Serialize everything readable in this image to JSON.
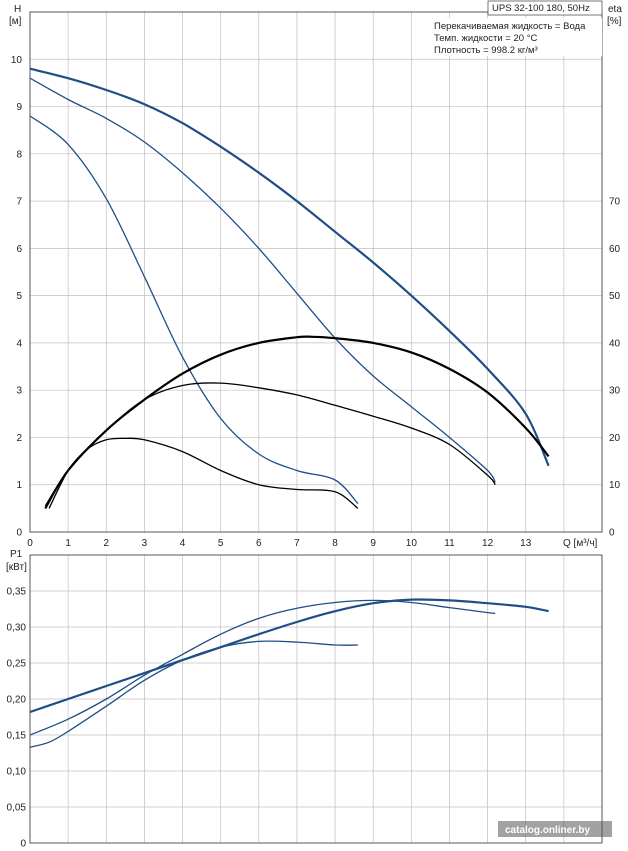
{
  "chart_data": [
    {
      "type": "line",
      "title": "UPS 32-100  180, 50Hz",
      "info_lines": [
        "Перекачиваемая жидкость = Вода",
        "Темп. жидкости = 20 °C",
        "Плотность = 998.2 кг/м³"
      ],
      "ylabel_left": "H",
      "ylabel_left_unit": "[м]",
      "ylabel_right": "eta",
      "ylabel_right_unit": "[%]",
      "xlabel": "Q [м³/ч]",
      "xlim": [
        0,
        15
      ],
      "xticks": [
        0,
        1,
        2,
        3,
        4,
        5,
        6,
        7,
        8,
        9,
        10,
        11,
        12,
        13
      ],
      "ylim_left": [
        0,
        11
      ],
      "yticks_left": [
        0,
        1,
        2,
        3,
        4,
        5,
        6,
        7,
        8,
        9,
        10
      ],
      "ylim_right": [
        0,
        110
      ],
      "yticks_right": [
        0,
        10,
        20,
        30,
        40,
        50,
        60,
        70
      ],
      "grid": true,
      "head_series": [
        {
          "points": [
            [
              0,
              9.8
            ],
            [
              1,
              9.6
            ],
            [
              2,
              9.35
            ],
            [
              3,
              9.05
            ],
            [
              4,
              8.65
            ],
            [
              5,
              8.15
            ],
            [
              6,
              7.6
            ],
            [
              7,
              7.0
            ],
            [
              8,
              6.35
            ],
            [
              9,
              5.7
            ],
            [
              10,
              5.0
            ],
            [
              11,
              4.25
            ],
            [
              12,
              3.45
            ],
            [
              13,
              2.5
            ],
            [
              13.6,
              1.4
            ]
          ]
        },
        {
          "points": [
            [
              0,
              9.6
            ],
            [
              1,
              9.15
            ],
            [
              2,
              8.75
            ],
            [
              3,
              8.25
            ],
            [
              4,
              7.6
            ],
            [
              5,
              6.85
            ],
            [
              6,
              6.0
            ],
            [
              7,
              5.05
            ],
            [
              8,
              4.1
            ],
            [
              9,
              3.3
            ],
            [
              10,
              2.65
            ],
            [
              11,
              2.0
            ],
            [
              12,
              1.3
            ],
            [
              12.2,
              1.05
            ]
          ]
        },
        {
          "points": [
            [
              0,
              8.8
            ],
            [
              1,
              8.2
            ],
            [
              2,
              7.05
            ],
            [
              3,
              5.4
            ],
            [
              4,
              3.7
            ],
            [
              5,
              2.4
            ],
            [
              6,
              1.65
            ],
            [
              7,
              1.3
            ],
            [
              8,
              1.1
            ],
            [
              8.6,
              0.6
            ]
          ]
        }
      ],
      "eta_series": [
        {
          "points": [
            [
              0.4,
              5
            ],
            [
              1,
              13
            ],
            [
              2,
              21.5
            ],
            [
              3,
              28
            ],
            [
              4,
              33.5
            ],
            [
              5,
              37.5
            ],
            [
              6,
              40
            ],
            [
              7,
              41.2
            ],
            [
              7.4,
              41.3
            ],
            [
              8,
              41
            ],
            [
              9,
              40
            ],
            [
              10,
              38
            ],
            [
              11,
              34.5
            ],
            [
              12,
              29.5
            ],
            [
              13,
              22
            ],
            [
              13.6,
              16
            ]
          ]
        },
        {
          "points": [
            [
              0.4,
              5.5
            ],
            [
              1,
              13
            ],
            [
              2,
              21.5
            ],
            [
              3,
              28
            ],
            [
              4,
              31
            ],
            [
              5,
              31.5
            ],
            [
              6,
              30.5
            ],
            [
              7,
              29
            ],
            [
              8,
              26.8
            ],
            [
              9,
              24.5
            ],
            [
              10,
              22
            ],
            [
              11,
              18.5
            ],
            [
              12,
              12
            ],
            [
              12.2,
              10
            ]
          ]
        },
        {
          "points": [
            [
              0.5,
              5
            ],
            [
              1,
              13
            ],
            [
              1.5,
              17.5
            ],
            [
              2,
              19.5
            ],
            [
              2.5,
              19.8
            ],
            [
              3,
              19.5
            ],
            [
              4,
              17
            ],
            [
              5,
              13
            ],
            [
              6,
              10
            ],
            [
              7,
              9
            ],
            [
              8,
              8.5
            ],
            [
              8.6,
              5
            ]
          ]
        }
      ]
    },
    {
      "type": "line",
      "ylabel": "P1",
      "ylabel_unit": "[кВт]",
      "xlim": [
        0,
        15
      ],
      "ylim": [
        0,
        0.4
      ],
      "yticks": [
        "0",
        "0,05",
        "0,10",
        "0,15",
        "0,20",
        "0,25",
        "0,30",
        "0,35"
      ],
      "grid": true,
      "power_series": [
        {
          "points": [
            [
              0,
              0.182
            ],
            [
              1,
              0.2
            ],
            [
              2,
              0.218
            ],
            [
              3,
              0.236
            ],
            [
              4,
              0.254
            ],
            [
              5,
              0.272
            ],
            [
              6,
              0.29
            ],
            [
              7,
              0.307
            ],
            [
              8,
              0.322
            ],
            [
              9,
              0.333
            ],
            [
              10,
              0.338
            ],
            [
              11,
              0.337
            ],
            [
              12,
              0.333
            ],
            [
              13,
              0.328
            ],
            [
              13.6,
              0.322
            ]
          ]
        },
        {
          "points": [
            [
              0,
              0.15
            ],
            [
              1,
              0.172
            ],
            [
              2,
              0.2
            ],
            [
              3,
              0.233
            ],
            [
              4,
              0.262
            ],
            [
              5,
              0.29
            ],
            [
              6,
              0.312
            ],
            [
              7,
              0.326
            ],
            [
              8,
              0.334
            ],
            [
              9,
              0.337
            ],
            [
              10,
              0.334
            ],
            [
              11,
              0.327
            ],
            [
              12,
              0.32
            ],
            [
              12.2,
              0.319
            ]
          ]
        },
        {
          "points": [
            [
              0,
              0.133
            ],
            [
              0.5,
              0.14
            ],
            [
              1,
              0.155
            ],
            [
              2,
              0.19
            ],
            [
              3,
              0.226
            ],
            [
              4,
              0.254
            ],
            [
              5,
              0.272
            ],
            [
              6,
              0.28
            ],
            [
              7,
              0.279
            ],
            [
              8,
              0.275
            ],
            [
              8.6,
              0.275
            ]
          ]
        }
      ]
    }
  ],
  "watermark": "catalog.onliner.by",
  "colors": {
    "curve": "#1f4e86",
    "eta": "#000000",
    "grid": "#c0c0c0",
    "frame": "#555555"
  }
}
